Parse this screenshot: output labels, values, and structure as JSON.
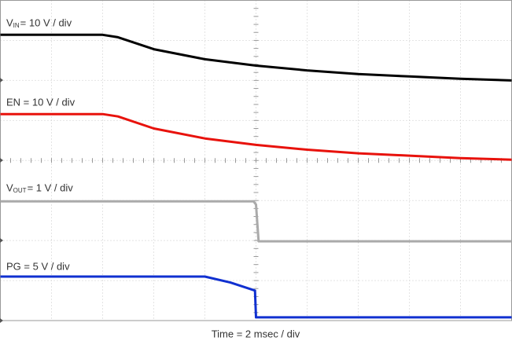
{
  "chart_data": {
    "type": "line",
    "xlabel": "Time = 2 msec / div",
    "xlim": [
      0,
      10
    ],
    "ylim": [
      0,
      8
    ],
    "xticks": [
      0,
      1,
      2,
      3,
      4,
      5,
      6,
      7,
      8,
      9,
      10
    ],
    "yticks": [
      0,
      1,
      2,
      3,
      4,
      5,
      6,
      7,
      8
    ],
    "grid": true,
    "series": [
      {
        "name": {
          "base": "V",
          "subscript": "IN",
          "rest": "= 10 V / div"
        },
        "color": "#000000",
        "x": [
          0,
          2,
          2.3,
          3,
          4,
          5,
          6,
          7,
          8,
          9,
          10
        ],
        "values": [
          7.14,
          7.14,
          7.08,
          6.78,
          6.53,
          6.37,
          6.25,
          6.16,
          6.1,
          6.04,
          6.0
        ]
      },
      {
        "name": "EN = 10 V / div",
        "color": "#e8120c",
        "x": [
          0,
          2,
          2.3,
          3,
          4,
          5,
          6,
          7,
          8,
          9,
          10
        ],
        "values": [
          5.16,
          5.16,
          5.1,
          4.8,
          4.55,
          4.39,
          4.27,
          4.18,
          4.12,
          4.06,
          4.02
        ]
      },
      {
        "name": {
          "base": "V",
          "subscript": "OUT",
          "rest": "= 1 V / div"
        },
        "color": "#aaaaaa",
        "x": [
          0,
          4.95,
          5.0,
          5.05,
          10
        ],
        "values": [
          2.98,
          2.98,
          2.9,
          1.98,
          1.98
        ]
      },
      {
        "name": "PG = 5 V / div",
        "color": "#1030d0",
        "x": [
          0,
          4.0,
          4.5,
          4.98,
          5.0,
          10
        ],
        "values": [
          1.1,
          1.1,
          0.95,
          0.75,
          0.08,
          0.08
        ]
      }
    ]
  }
}
